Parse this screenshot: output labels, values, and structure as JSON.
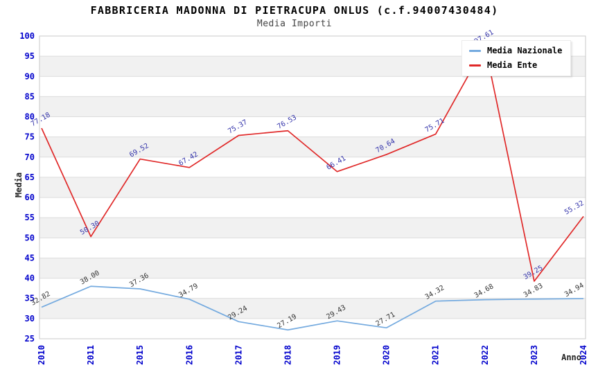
{
  "title": "FABBRICERIA MADONNA DI PIETRACUPA ONLUS (c.f.94007430484)",
  "subtitle": "Media Importi",
  "chart_data": {
    "type": "line",
    "categories": [
      "2010",
      "2011",
      "2015",
      "2016",
      "2017",
      "2018",
      "2019",
      "2020",
      "2021",
      "2022",
      "2023",
      "2024"
    ],
    "series": [
      {
        "name": "Media Nazionale",
        "color": "#74AADF",
        "label_color": "#333333",
        "values": [
          32.82,
          38.0,
          37.36,
          34.79,
          29.24,
          27.19,
          29.43,
          27.71,
          34.32,
          34.68,
          34.83,
          34.94
        ]
      },
      {
        "name": "Media Ente",
        "color": "#E02828",
        "label_color": "#3333AA",
        "values": [
          77.18,
          50.3,
          69.52,
          67.42,
          75.37,
          76.53,
          66.41,
          70.64,
          75.71,
          97.61,
          39.25,
          55.32
        ]
      }
    ],
    "xlabel": "Anno",
    "ylabel": "Media",
    "ylim": [
      25,
      100
    ],
    "ytick_step": 5,
    "grid": "horizontal",
    "legend_position": "top-right",
    "colors": {
      "axis_tick_labels": "#0000CC",
      "band_gray": "#F1F1F1",
      "band_white": "#FFFFFF",
      "gridline": "#DCDCDC",
      "plot_border": "#C9C9C9"
    }
  }
}
